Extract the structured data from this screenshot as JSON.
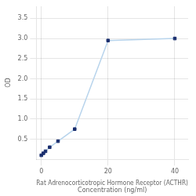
{
  "chart_data": {
    "type": "line",
    "x": [
      0,
      0.625,
      1.25,
      2.5,
      5,
      10,
      20,
      40
    ],
    "series": [
      {
        "type": "line",
        "color": "#b8d4ec",
        "values": [
          0.1,
          0.15,
          0.2,
          0.3,
          0.45,
          0.75,
          2.95,
          3.0
        ]
      },
      {
        "type": "scatter",
        "color": "#1a2e6e",
        "marker": "square",
        "values": [
          0.1,
          0.15,
          0.2,
          0.3,
          0.45,
          0.75,
          2.95,
          3.0
        ]
      }
    ],
    "xlabel": [
      "Rat Adrenocorticotropic Hormone Receptor (ACTHR)",
      "Concentration (ng/ml)"
    ],
    "ylabel": "OD",
    "xlim": [
      -1.5,
      44
    ],
    "ylim": [
      0,
      3.8
    ],
    "xticks": [
      0,
      20,
      40
    ],
    "yticks": [
      0.5,
      {
        "value": 1,
        "label": "1.0"
      },
      1.5,
      {
        "value": 2,
        "label": "2.0"
      },
      2.5,
      {
        "value": 3,
        "label": "3.0"
      },
      3.5
    ],
    "grid": true
  }
}
